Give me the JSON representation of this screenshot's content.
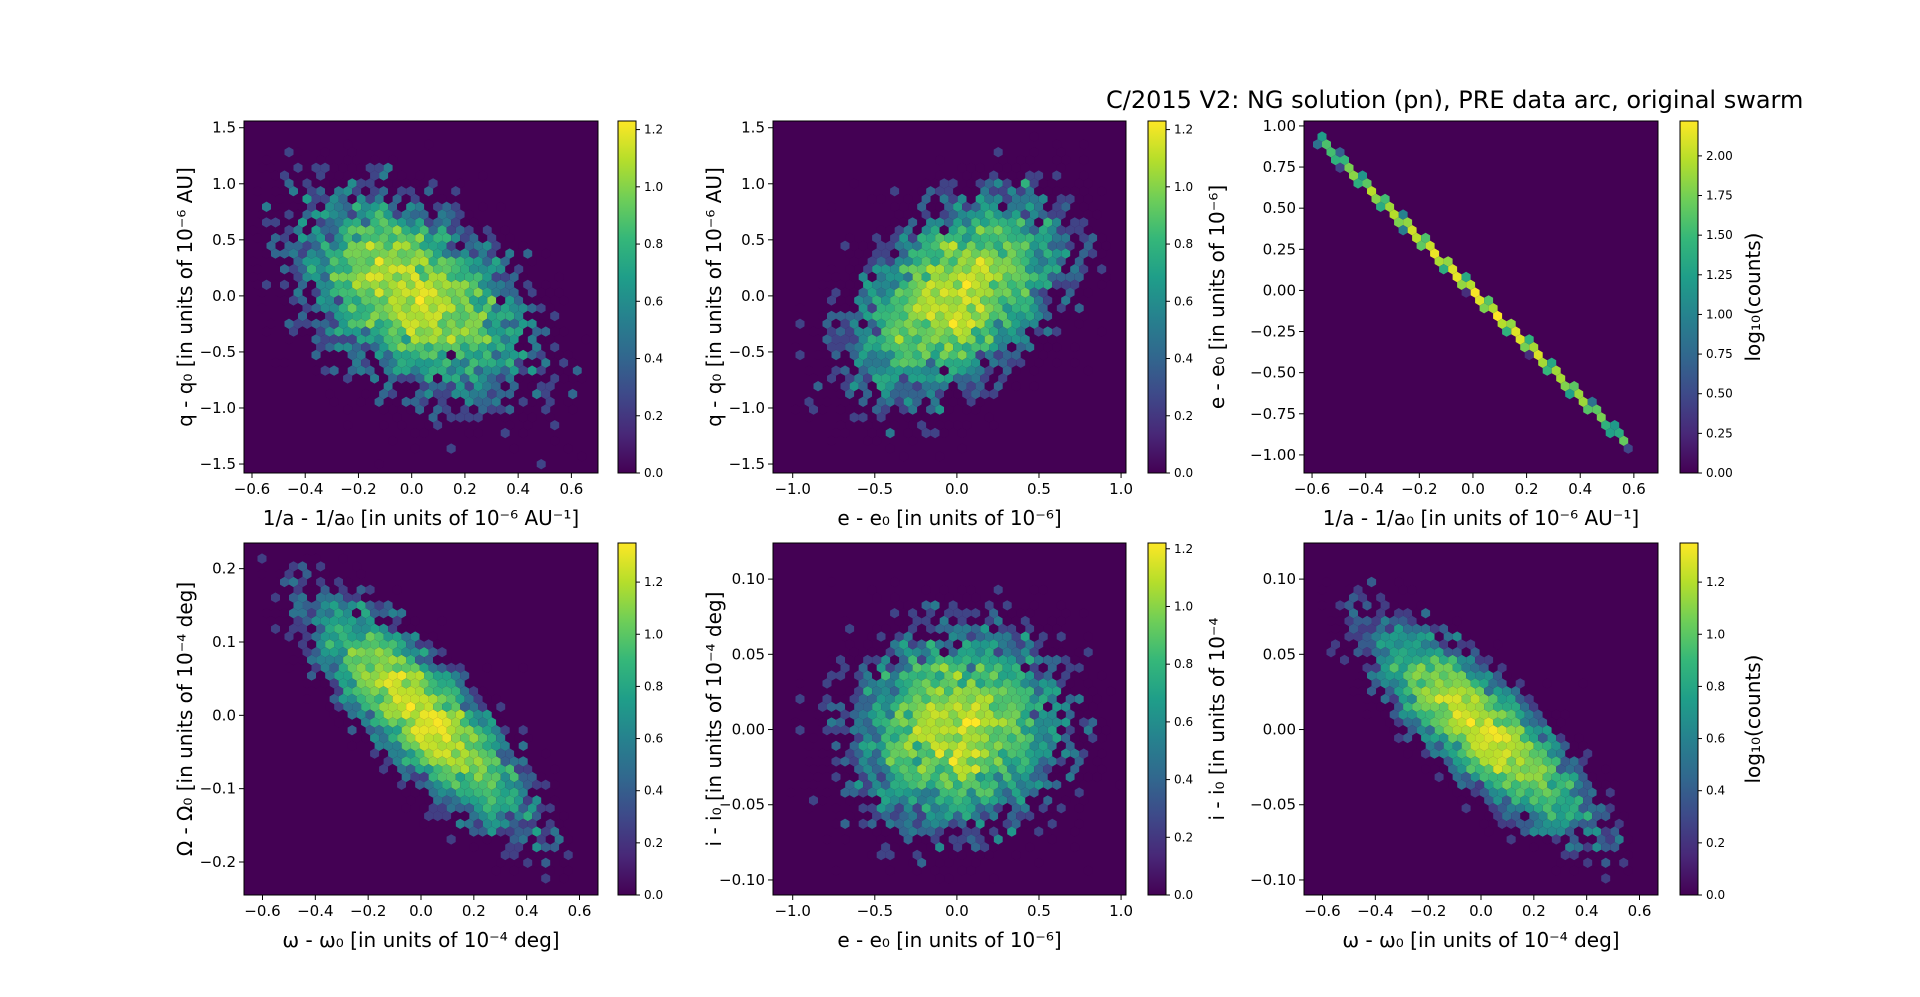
{
  "title": "C/2015 V2: NG solution (pn), PRE data arc,  original swarm",
  "colormap": [
    "#440154",
    "#482878",
    "#3e4989",
    "#31688e",
    "#26828e",
    "#1f9e89",
    "#35b779",
    "#6ece58",
    "#b5de2b",
    "#fde725"
  ],
  "chart_data": [
    {
      "type": "heatmap",
      "subtype": "hexbin",
      "xlabel": "1/a - 1/a₀ [in units of 10⁻⁶ AU⁻¹]",
      "ylabel": "q - q₀ [in units of 10⁻⁶ AU]",
      "xlim": [
        -0.63,
        0.7
      ],
      "ylim": [
        -1.58,
        1.56
      ],
      "xticks": [
        -0.6,
        -0.4,
        -0.2,
        0.0,
        0.2,
        0.4,
        0.6
      ],
      "xtick_labels": [
        "−0.6",
        "−0.4",
        "−0.2",
        "0.0",
        "0.2",
        "0.4",
        "0.6"
      ],
      "yticks": [
        -1.5,
        -1.0,
        -0.5,
        0.0,
        0.5,
        1.0,
        1.5
      ],
      "ytick_labels": [
        "−1.5",
        "−1.0",
        "−0.5",
        "0.0",
        "0.5",
        "1.0",
        "1.5"
      ],
      "colorbar": {
        "ticks": [
          0.0,
          0.2,
          0.4,
          0.6,
          0.8,
          1.0,
          1.2
        ],
        "labels": [
          "0.0",
          "0.2",
          "0.4",
          "0.6",
          "0.8",
          "1.0",
          "1.2"
        ],
        "vmax": 1.23,
        "label": ""
      },
      "distribution": {
        "center": [
          0.0,
          0.0
        ],
        "sigma": [
          0.22,
          0.45
        ],
        "correlation": -0.45,
        "extent": [
          [
            -0.6,
            0.68
          ],
          [
            -1.52,
            1.4
          ]
        ]
      }
    },
    {
      "type": "heatmap",
      "subtype": "hexbin",
      "xlabel": "e - e₀ [in units of 10⁻⁶]",
      "ylabel": "q - q₀ [in units of 10⁻⁶ AU]",
      "xlim": [
        -1.12,
        1.03
      ],
      "ylim": [
        -1.58,
        1.56
      ],
      "xticks": [
        -1.0,
        -0.5,
        0.0,
        0.5,
        1.0
      ],
      "xtick_labels": [
        "−1.0",
        "−0.5",
        "0.0",
        "0.5",
        "1.0"
      ],
      "yticks": [
        -1.5,
        -1.0,
        -0.5,
        0.0,
        0.5,
        1.0,
        1.5
      ],
      "ytick_labels": [
        "−1.5",
        "−1.0",
        "−0.5",
        "0.0",
        "0.5",
        "1.0",
        "1.5"
      ],
      "colorbar": {
        "ticks": [
          0.0,
          0.2,
          0.4,
          0.6,
          0.8,
          1.0,
          1.2
        ],
        "labels": [
          "0.0",
          "0.2",
          "0.4",
          "0.6",
          "0.8",
          "1.0",
          "1.2"
        ],
        "vmax": 1.23,
        "label": ""
      },
      "distribution": {
        "center": [
          0.0,
          0.0
        ],
        "sigma": [
          0.32,
          0.45
        ],
        "correlation": 0.45,
        "extent": [
          [
            -1.0,
            0.95
          ],
          [
            -1.52,
            1.4
          ]
        ]
      }
    },
    {
      "type": "heatmap",
      "subtype": "hexbin-line",
      "xlabel": "1/a - 1/a₀ [in units of 10⁻⁶ AU⁻¹]",
      "ylabel": "e - e₀ [in units of 10⁻⁶]",
      "xlim": [
        -0.63,
        0.69
      ],
      "ylim": [
        -1.11,
        1.03
      ],
      "xticks": [
        -0.6,
        -0.4,
        -0.2,
        0.0,
        0.2,
        0.4,
        0.6
      ],
      "xtick_labels": [
        "−0.6",
        "−0.4",
        "−0.2",
        "0.0",
        "0.2",
        "0.4",
        "0.6"
      ],
      "yticks": [
        -1.0,
        -0.75,
        -0.5,
        -0.25,
        0.0,
        0.25,
        0.5,
        0.75,
        1.0
      ],
      "ytick_labels": [
        "−1.00",
        "−0.75",
        "−0.50",
        "−0.25",
        "0.00",
        "0.25",
        "0.50",
        "0.75",
        "1.00"
      ],
      "colorbar": {
        "ticks": [
          0.0,
          0.25,
          0.5,
          0.75,
          1.0,
          1.25,
          1.5,
          1.75,
          2.0
        ],
        "labels": [
          "0.00",
          "0.25",
          "0.50",
          "0.75",
          "1.00",
          "1.25",
          "1.50",
          "1.75",
          "2.00"
        ],
        "vmax": 2.22,
        "label": "log₁₀(counts)"
      },
      "distribution": {
        "line": [
          [
            -0.58,
            0.93
          ],
          [
            0.58,
            -0.94
          ]
        ],
        "sigma_t": 0.33
      }
    },
    {
      "type": "heatmap",
      "subtype": "hexbin",
      "xlabel": "ω - ω₀ [in units of 10⁻⁴ deg]",
      "ylabel": "Ω - Ω₀ [in units of 10⁻⁴ deg]",
      "xlim": [
        -0.67,
        0.67
      ],
      "ylim": [
        -0.245,
        0.235
      ],
      "xticks": [
        -0.6,
        -0.4,
        -0.2,
        0.0,
        0.2,
        0.4,
        0.6
      ],
      "xtick_labels": [
        "−0.6",
        "−0.4",
        "−0.2",
        "0.0",
        "0.2",
        "0.4",
        "0.6"
      ],
      "yticks": [
        -0.2,
        -0.1,
        0.0,
        0.1,
        0.2
      ],
      "ytick_labels": [
        "−0.2",
        "−0.1",
        "0.0",
        "0.1",
        "0.2"
      ],
      "colorbar": {
        "ticks": [
          0.0,
          0.2,
          0.4,
          0.6,
          0.8,
          1.0,
          1.2
        ],
        "labels": [
          "0.0",
          "0.2",
          "0.4",
          "0.6",
          "0.8",
          "1.0",
          "1.2"
        ],
        "vmax": 1.35,
        "label": ""
      },
      "distribution": {
        "center": [
          0.0,
          0.0
        ],
        "sigma": [
          0.2,
          0.075
        ],
        "correlation": -0.82,
        "extent": [
          [
            -0.6,
            0.58
          ],
          [
            -0.23,
            0.22
          ]
        ]
      }
    },
    {
      "type": "heatmap",
      "subtype": "hexbin",
      "xlabel": "e - e₀ [in units of 10⁻⁶]",
      "ylabel": "i - i₀ [in units of 10⁻⁴ deg]",
      "xlim": [
        -1.12,
        1.03
      ],
      "ylim": [
        -0.11,
        0.124
      ],
      "xticks": [
        -1.0,
        -0.5,
        0.0,
        0.5,
        1.0
      ],
      "xtick_labels": [
        "−1.0",
        "−0.5",
        "0.0",
        "0.5",
        "1.0"
      ],
      "yticks": [
        -0.1,
        -0.05,
        0.0,
        0.05,
        0.1
      ],
      "ytick_labels": [
        "−0.10",
        "−0.05",
        "0.00",
        "0.05",
        "0.10"
      ],
      "colorbar": {
        "ticks": [
          0.0,
          0.2,
          0.4,
          0.6,
          0.8,
          1.0,
          1.2
        ],
        "labels": [
          "0.0",
          "0.2",
          "0.4",
          "0.6",
          "0.8",
          "1.0",
          "1.2"
        ],
        "vmax": 1.22,
        "label": ""
      },
      "distribution": {
        "center": [
          0.0,
          0.0
        ],
        "sigma": [
          0.32,
          0.033
        ],
        "correlation": 0.08,
        "extent": [
          [
            -1.0,
            0.98
          ],
          [
            -0.1,
            0.1
          ]
        ]
      }
    },
    {
      "type": "heatmap",
      "subtype": "hexbin",
      "xlabel": "ω - ω₀ [in units of 10⁻⁴ deg]",
      "ylabel": "i - i₀ [in units of 10⁻⁴",
      "xlim": [
        -0.67,
        0.67
      ],
      "ylim": [
        -0.11,
        0.124
      ],
      "xticks": [
        -0.6,
        -0.4,
        -0.2,
        0.0,
        0.2,
        0.4,
        0.6
      ],
      "xtick_labels": [
        "−0.6",
        "−0.4",
        "−0.2",
        "0.0",
        "0.2",
        "0.4",
        "0.6"
      ],
      "yticks": [
        -0.1,
        -0.05,
        0.0,
        0.05,
        0.1
      ],
      "ytick_labels": [
        "−0.10",
        "−0.05",
        "0.00",
        "0.05",
        "0.10"
      ],
      "colorbar": {
        "ticks": [
          0.0,
          0.2,
          0.4,
          0.6,
          0.8,
          1.0,
          1.2
        ],
        "labels": [
          "0.0",
          "0.2",
          "0.4",
          "0.6",
          "0.8",
          "1.0",
          "1.2"
        ],
        "vmax": 1.35,
        "label": "log₁₀(counts)"
      },
      "distribution": {
        "center": [
          0.0,
          0.0
        ],
        "sigma": [
          0.2,
          0.033
        ],
        "correlation": -0.82,
        "extent": [
          [
            -0.6,
            0.58
          ],
          [
            -0.1,
            0.1
          ]
        ]
      }
    }
  ]
}
